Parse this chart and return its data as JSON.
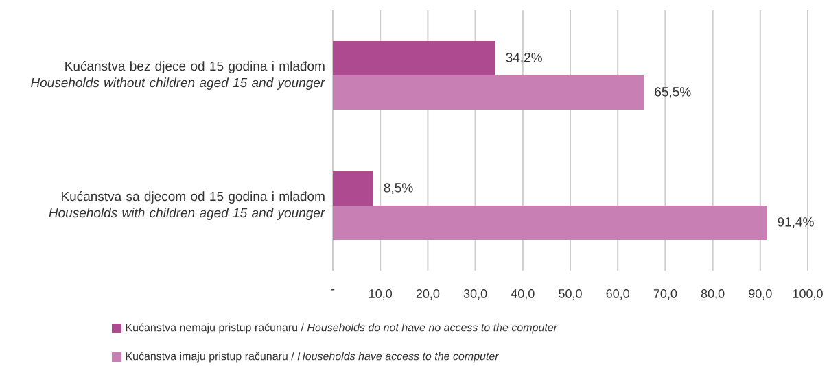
{
  "chart_data": {
    "type": "bar",
    "orientation": "horizontal",
    "categories": [
      "Kućanstva bez djece od 15 godina i mlađom *Households without children aged 15 and younger*",
      "Kućanstva sa djecom od 15 godina i mlađom *Households with children aged 15 and younger*"
    ],
    "series": [
      {
        "name": "Kućanstva nemaju pristup računaru / *Households do not have no access to the computer*",
        "color": "#ae4a8f",
        "values": [
          34.2,
          8.5
        ],
        "value_labels": [
          "34,2%",
          "8,5%"
        ]
      },
      {
        "name": "Kućanstva imaju pristup računaru / *Households have access to the computer*",
        "color": "#c77fb4",
        "values": [
          65.5,
          91.4
        ],
        "value_labels": [
          "65,5%",
          "91,4%"
        ]
      }
    ],
    "xlim": [
      0,
      100
    ],
    "xticks": [
      {
        "value": 0,
        "label": "-"
      },
      {
        "value": 10,
        "label": "10,0"
      },
      {
        "value": 20,
        "label": "20,0"
      },
      {
        "value": 30,
        "label": "30,0"
      },
      {
        "value": 40,
        "label": "40,0"
      },
      {
        "value": 50,
        "label": "50,0"
      },
      {
        "value": 60,
        "label": "60,0"
      },
      {
        "value": 70,
        "label": "70,0"
      },
      {
        "value": 80,
        "label": "80,0"
      },
      {
        "value": 90,
        "label": "90,0"
      },
      {
        "value": 100,
        "label": "100,0"
      }
    ],
    "grid": "x",
    "legend": "bottom"
  }
}
